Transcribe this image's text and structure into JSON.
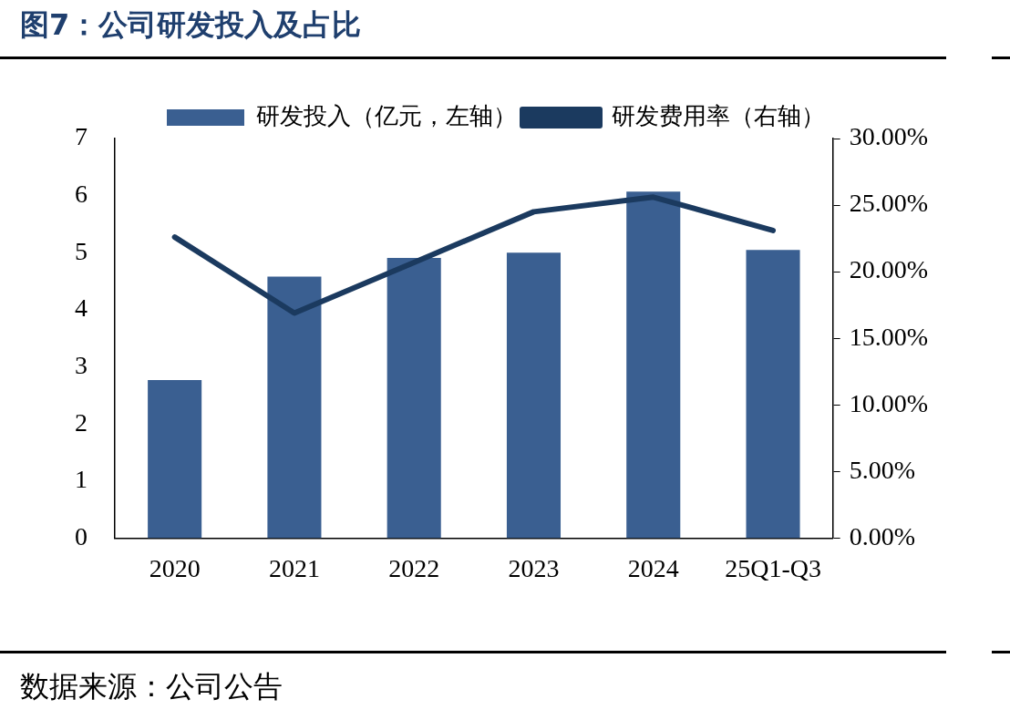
{
  "chart_data": {
    "type": "bar",
    "title": "图7：公司研发投入及占比",
    "categories": [
      "2020",
      "2021",
      "2022",
      "2023",
      "2024",
      "25Q1-Q3"
    ],
    "series": [
      {
        "name": "研发投入（亿元，左轴）",
        "color": "#3a5f91",
        "values": [
          2.77,
          4.58,
          4.91,
          5.0,
          6.07,
          5.05
        ]
      },
      {
        "name": "研发费用率（右轴）",
        "type": "line",
        "axis": "y2",
        "color": "#1b3a5f",
        "values": [
          22.6,
          16.9,
          20.7,
          24.5,
          25.6,
          23.1
        ]
      }
    ],
    "ylim": [
      0,
      7
    ],
    "yticks": [
      0,
      1,
      2,
      3,
      4,
      5,
      6,
      7
    ],
    "y2lim": [
      0,
      30
    ],
    "y2ticks": [
      {
        "value": 0,
        "label": "0.00%"
      },
      {
        "value": 5,
        "label": "5.00%"
      },
      {
        "value": 10,
        "label": "10.00%"
      },
      {
        "value": 15,
        "label": "15.00%"
      },
      {
        "value": 20,
        "label": "20.00%"
      },
      {
        "value": 25,
        "label": "25.00%"
      },
      {
        "value": 30,
        "label": "30.00%"
      }
    ],
    "legend": "top",
    "grid": false,
    "marker": "none",
    "line_style": "solid",
    "annotations": [
      "数据来源：公司公告"
    ]
  }
}
